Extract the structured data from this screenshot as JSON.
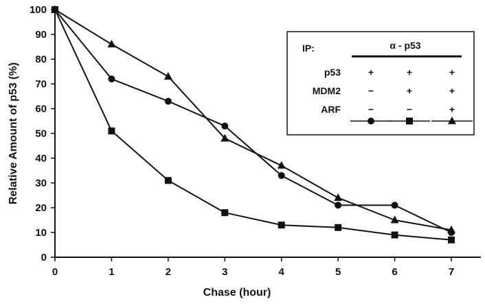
{
  "chart_data": {
    "type": "line",
    "xlabel": "Chase (hour)",
    "ylabel": "Relative Amount of p53 (%)",
    "xlim": [
      0,
      7
    ],
    "ylim": [
      0,
      100
    ],
    "x_ticks": [
      "0",
      "1",
      "2",
      "3",
      "4",
      "5",
      "6",
      "7"
    ],
    "y_ticks": [
      "0",
      "10",
      "20",
      "30",
      "40",
      "50",
      "60",
      "70",
      "80",
      "90",
      "100"
    ],
    "grid": false,
    "legend_position": "top-right",
    "series": [
      {
        "marker": "circle",
        "x": [
          0,
          1,
          2,
          3,
          4,
          5,
          6,
          7
        ],
        "values": [
          100,
          72,
          63,
          53,
          33,
          21,
          21,
          10
        ]
      },
      {
        "marker": "square",
        "x": [
          0,
          1,
          2,
          3,
          4,
          5,
          6,
          7
        ],
        "values": [
          100,
          51,
          31,
          18,
          13,
          12,
          9,
          7
        ]
      },
      {
        "marker": "triangle",
        "x": [
          0,
          1,
          2,
          3,
          4,
          5,
          6,
          7
        ],
        "values": [
          100,
          86,
          73,
          48,
          37,
          24,
          15,
          11
        ]
      }
    ],
    "legend": {
      "ip_label": "IP:",
      "ip_value": "α - p53",
      "rows": [
        {
          "label": "p53",
          "values": [
            "+",
            "+",
            "+"
          ]
        },
        {
          "label": "MDM2",
          "values": [
            "−",
            "+",
            "+"
          ]
        },
        {
          "label": "ARF",
          "values": [
            "−",
            "−",
            "+"
          ]
        }
      ],
      "markers": [
        "circle",
        "square",
        "triangle"
      ]
    }
  }
}
